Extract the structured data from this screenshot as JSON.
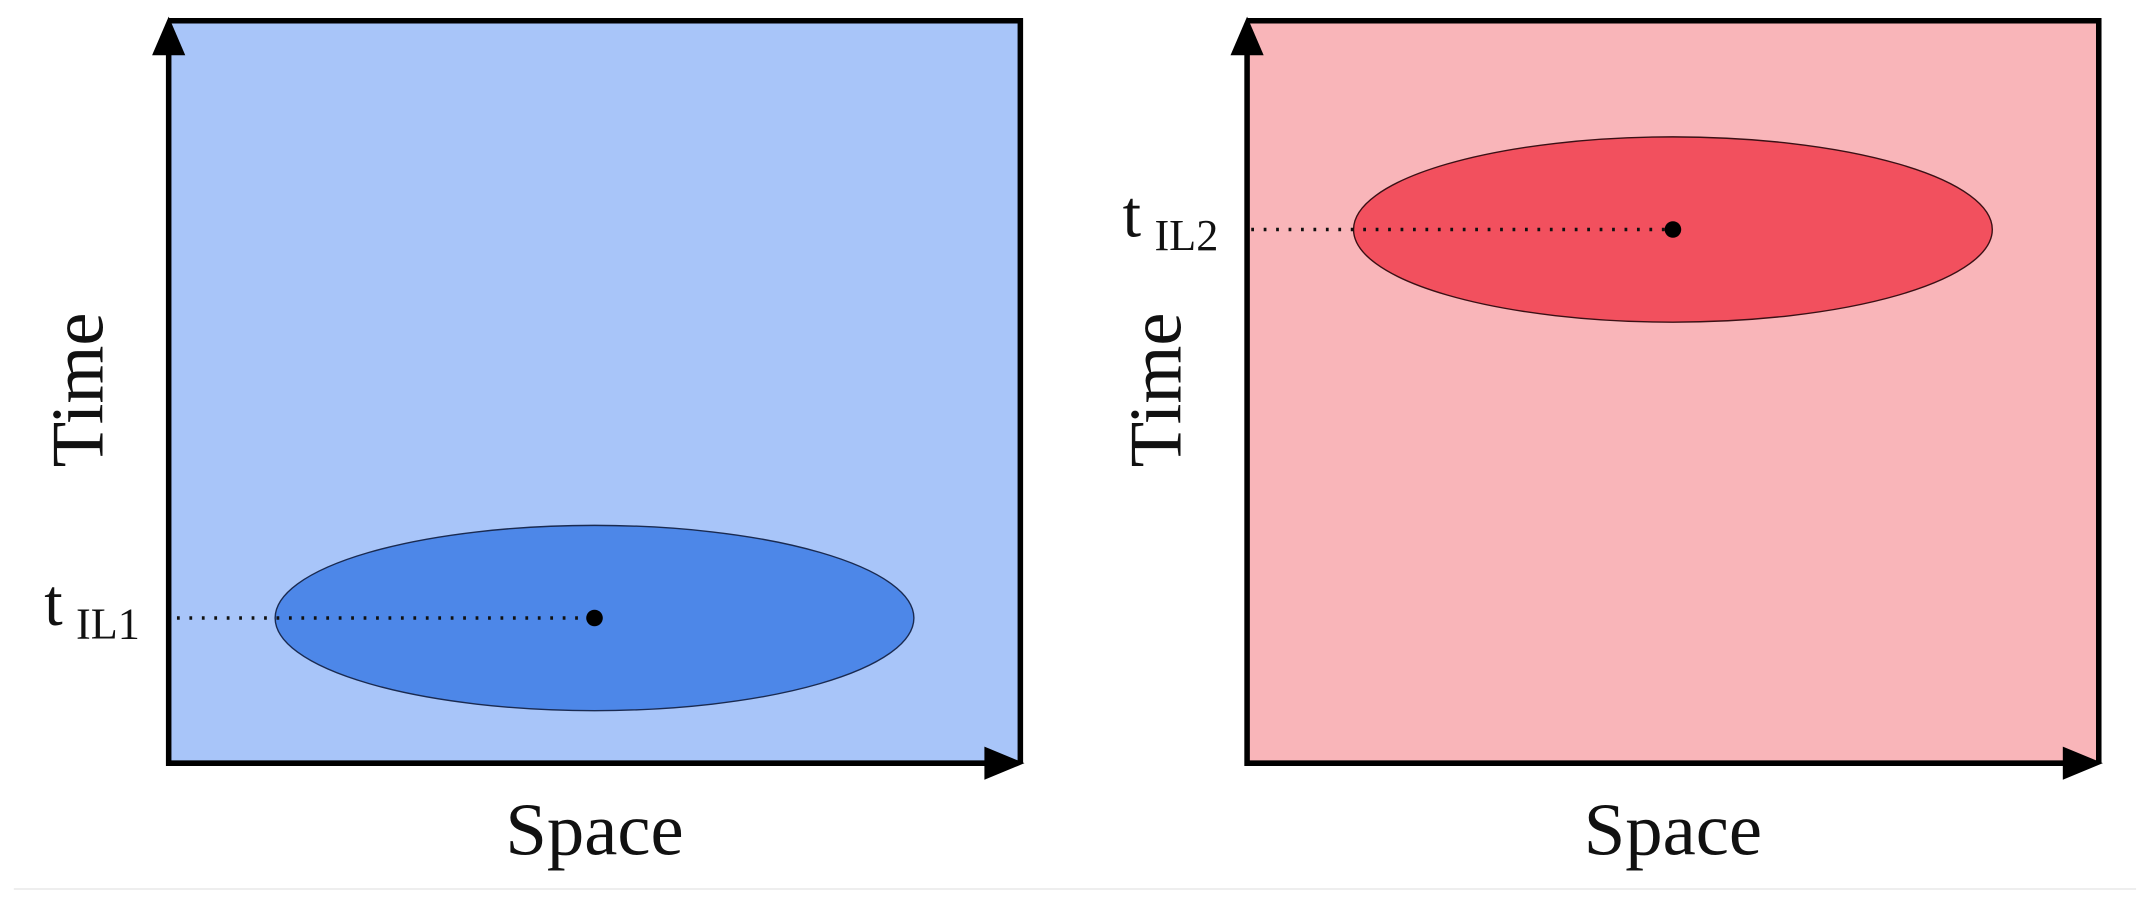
{
  "panels": [
    {
      "y_label": "Time",
      "x_label": "Space",
      "marker": {
        "label": "t",
        "subscript": "IL1"
      }
    },
    {
      "y_label": "Time",
      "x_label": "Space",
      "marker": {
        "label": "t",
        "subscript": "IL2"
      }
    }
  ]
}
